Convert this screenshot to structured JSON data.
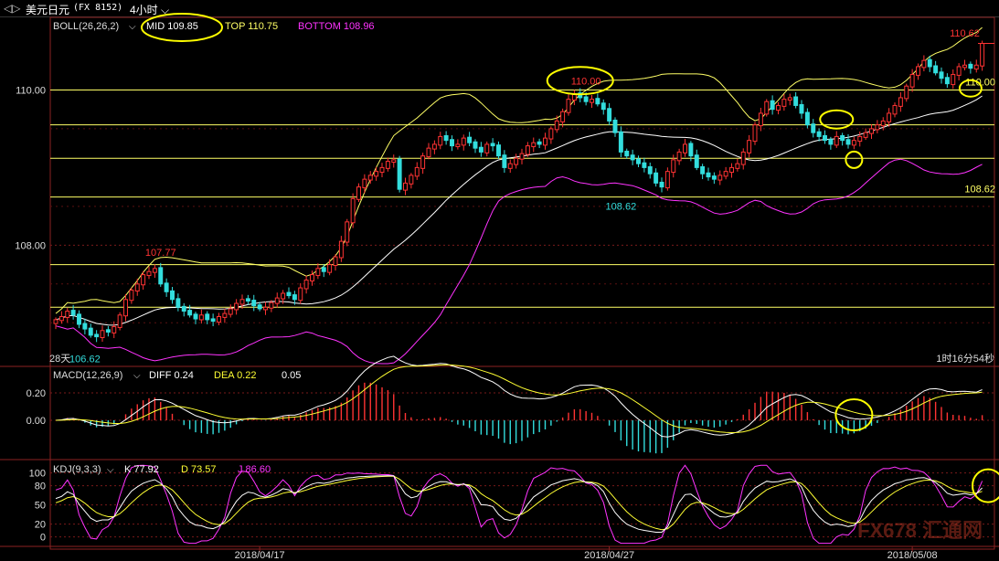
{
  "window": {
    "back_glyph": "◁▷",
    "instrument": "美元日元",
    "code": "(FX 8152)",
    "period": "4小时"
  },
  "colors": {
    "up": "#ff3333",
    "down": "#33dddd",
    "mid": "#ffffff",
    "top": "#ffff66",
    "bottom": "#ff33ff",
    "diff": "#ffffff",
    "dea": "#ffff33",
    "k": "#ffffff",
    "d": "#ffff33",
    "j": "#ff33ff",
    "hline": "#ffff66",
    "annotation": "#ffff00"
  },
  "chart_data": [
    {
      "type": "candlestick",
      "title": "",
      "indicator": {
        "name": "BOLL(26,26,2)",
        "mid_label": "MID",
        "mid": 109.85,
        "top_label": "TOP",
        "top": 110.75,
        "bottom_label": "BOTTOM",
        "bottom": 108.96
      },
      "ylim": [
        106.45,
        110.9
      ],
      "yticks": [
        108.0,
        110.0
      ],
      "ytick_labels": [
        "108.00",
        "110.00"
      ],
      "horizontal_lines": [
        110.0,
        109.55,
        109.12,
        108.62,
        107.75,
        107.2
      ],
      "price_labels": [
        {
          "text": "110.62",
          "value": 110.62,
          "color": "up"
        },
        {
          "text": "110.00",
          "value": 110.0,
          "color": "up"
        },
        {
          "text": "107.77",
          "value": 107.77,
          "color": "up"
        },
        {
          "text": "108.62",
          "value": 108.62,
          "color": "down"
        },
        {
          "text": "106.62",
          "value": 106.62,
          "color": "down"
        },
        {
          "text": "110.00",
          "value": 110.0,
          "color": "top"
        },
        {
          "text": "108.62",
          "value": 108.62,
          "color": "top"
        }
      ],
      "last_price_marker": 110.6,
      "left_note": "28天",
      "right_note": "1时16分54秒",
      "x_labels": [
        {
          "text": "2018/04/17",
          "index": 35
        },
        {
          "text": "2018/04/27",
          "index": 95
        },
        {
          "text": "2018/05/08",
          "index": 147
        }
      ],
      "close": [
        107.04,
        107.08,
        107.15,
        107.1,
        106.98,
        106.92,
        106.84,
        106.82,
        106.9,
        106.88,
        106.95,
        107.1,
        107.3,
        107.42,
        107.5,
        107.62,
        107.66,
        107.7,
        107.5,
        107.4,
        107.3,
        107.2,
        107.15,
        107.1,
        107.05,
        107.1,
        107.04,
        107.02,
        107.08,
        107.12,
        107.18,
        107.25,
        107.3,
        107.28,
        107.22,
        107.18,
        107.2,
        107.26,
        107.32,
        107.38,
        107.35,
        107.3,
        107.45,
        107.55,
        107.62,
        107.7,
        107.66,
        107.75,
        107.85,
        108.05,
        108.3,
        108.6,
        108.75,
        108.85,
        108.9,
        108.95,
        109.0,
        109.08,
        109.1,
        108.72,
        108.8,
        108.9,
        109.0,
        109.15,
        109.25,
        109.3,
        109.4,
        109.35,
        109.28,
        109.3,
        109.38,
        109.32,
        109.25,
        109.2,
        109.3,
        109.28,
        109.15,
        109.0,
        109.05,
        109.12,
        109.18,
        109.28,
        109.32,
        109.3,
        109.38,
        109.5,
        109.6,
        109.72,
        109.88,
        109.95,
        109.9,
        109.85,
        109.88,
        109.82,
        109.75,
        109.6,
        109.45,
        109.2,
        109.15,
        109.1,
        109.05,
        109.0,
        108.92,
        108.8,
        108.75,
        108.95,
        109.1,
        109.2,
        109.3,
        109.15,
        109.0,
        108.92,
        108.88,
        108.85,
        108.9,
        108.95,
        109.0,
        109.05,
        109.2,
        109.35,
        109.55,
        109.7,
        109.85,
        109.75,
        109.8,
        109.88,
        109.9,
        109.8,
        109.7,
        109.55,
        109.45,
        109.4,
        109.35,
        109.3,
        109.4,
        109.35,
        109.3,
        109.35,
        109.4,
        109.45,
        109.5,
        109.55,
        109.6,
        109.7,
        109.8,
        109.9,
        110.05,
        110.2,
        110.3,
        110.38,
        110.3,
        110.22,
        110.15,
        110.08,
        110.2,
        110.3,
        110.32,
        110.28,
        110.32,
        110.6
      ],
      "open_delta": 0.055
    },
    {
      "type": "bar+line",
      "indicator": {
        "name": "MACD(12,26,9)",
        "diff_label": "DIFF",
        "diff": 0.24,
        "dea_label": "DEA",
        "dea": 0.22,
        "macd": 0.05,
        "macd_text": "0.05"
      },
      "ylim": [
        -0.28,
        0.38
      ],
      "yticks": [
        0.2,
        0.0
      ],
      "ytick_labels": [
        "0.20",
        "0.00"
      ]
    },
    {
      "type": "line",
      "indicator": {
        "name": "KDJ(9,3,3)",
        "k_label": "K",
        "k": 77.92,
        "d_label": "D",
        "d": 73.57,
        "j_label": "J",
        "j": 86.6
      },
      "ylim": [
        -12,
        118
      ],
      "yticks": [
        100,
        80,
        50,
        20,
        0
      ],
      "ytick_labels": [
        "100",
        "80",
        "50",
        "20",
        "0"
      ]
    }
  ],
  "annotations": [
    {
      "panel": 0,
      "index": 90,
      "value": 110.12,
      "rx": 36,
      "ry": 15
    },
    {
      "panel": 0,
      "index": 134,
      "value": 109.62,
      "rx": 18,
      "ry": 10
    },
    {
      "panel": 0,
      "index": 137,
      "value": 109.1,
      "rx": 9,
      "ry": 9
    },
    {
      "panel": 0,
      "index": 157,
      "value": 110.02,
      "rx": 12,
      "ry": 9
    },
    {
      "panel": 1,
      "index": 137,
      "value": 0.04,
      "rx": 20,
      "ry": 17
    },
    {
      "panel": 2,
      "index": 160,
      "value": 80,
      "rx": 17,
      "ry": 18
    }
  ],
  "header_annotation": {
    "rx": 44,
    "ry": 15
  },
  "watermark": "FX678 汇通网"
}
